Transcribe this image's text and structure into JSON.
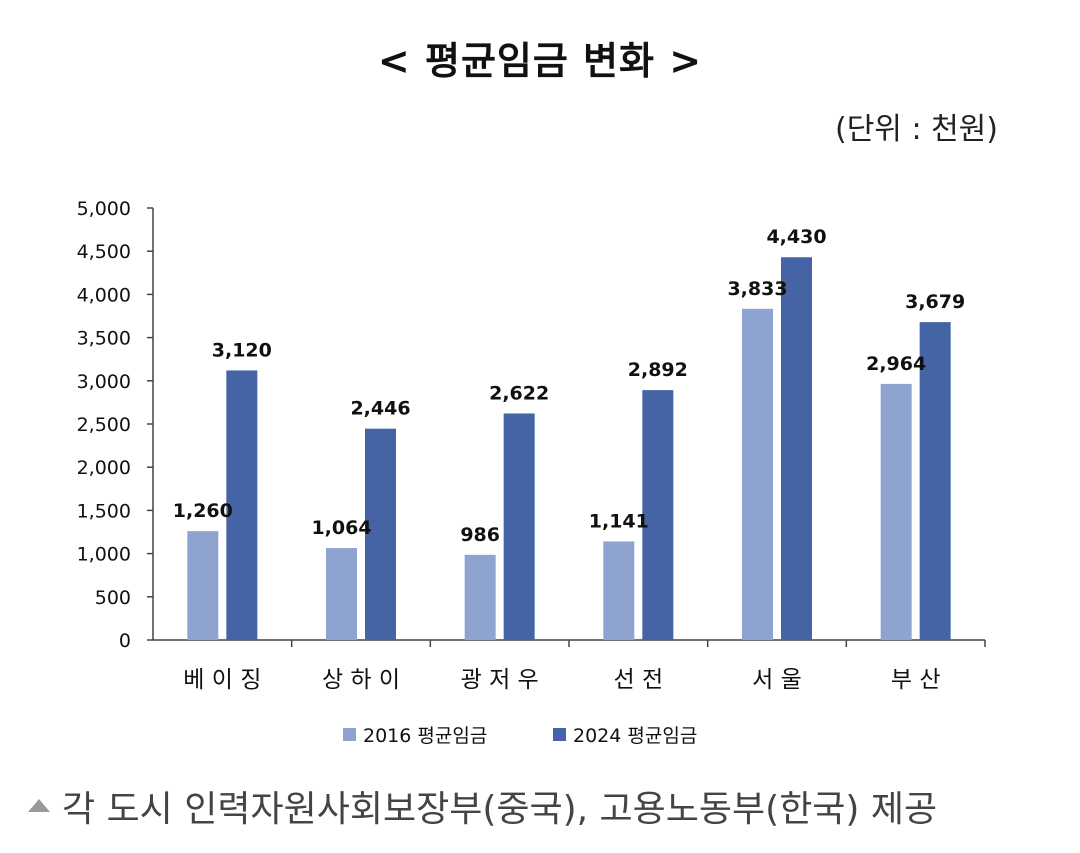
{
  "chart_data": {
    "type": "bar",
    "title": "< 평균임금 변화 >",
    "unit_label": "(단위 : 천원)",
    "categories": [
      "베 이 징",
      "상 하 이",
      "광 저 우",
      "선 전",
      "서 울",
      "부 산"
    ],
    "series": [
      {
        "name": "2016 평균임금",
        "color": "#8ea3cf",
        "values": [
          1260,
          1064,
          986,
          1141,
          3833,
          2964
        ]
      },
      {
        "name": "2024 평균임금",
        "color": "#4464a6",
        "values": [
          3120,
          2446,
          2622,
          2892,
          4430,
          3679
        ]
      }
    ],
    "y_ticks": [
      "0",
      "500",
      "1,000",
      "1,500",
      "2,000",
      "2,500",
      "3,000",
      "3,500",
      "4,000",
      "4,500",
      "5,000"
    ],
    "ylim": [
      0,
      5000
    ],
    "data_labels": [
      [
        "1,260",
        "1,064",
        "986",
        "1,141",
        "3,833",
        "2,964"
      ],
      [
        "3,120",
        "2,446",
        "2,622",
        "2,892",
        "4,430",
        "3,679"
      ]
    ],
    "grid": false,
    "legend": "bottom"
  },
  "caption": "각 도시 인력자원사회보장부(중국), 고용노동부(한국) 제공",
  "caption_icon": "triangle-up-icon"
}
